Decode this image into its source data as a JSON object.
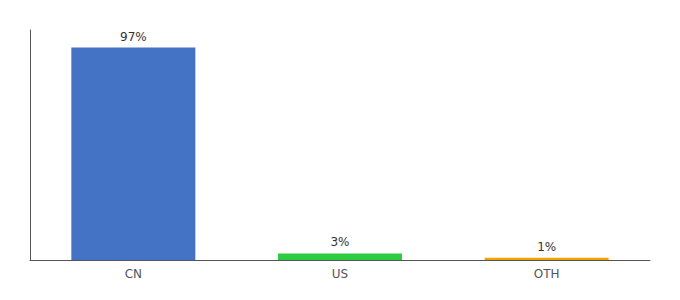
{
  "chart_data": {
    "type": "bar",
    "categories": [
      "CN",
      "US",
      "OTH"
    ],
    "values": [
      97,
      3,
      1
    ],
    "value_labels": [
      "97%",
      "3%",
      "1%"
    ],
    "colors": [
      "#4472c4",
      "#2ecc40",
      "#f0a500"
    ],
    "ylim": [
      0,
      105
    ],
    "data_labels": true,
    "tick_labels": "x",
    "grid": false
  }
}
